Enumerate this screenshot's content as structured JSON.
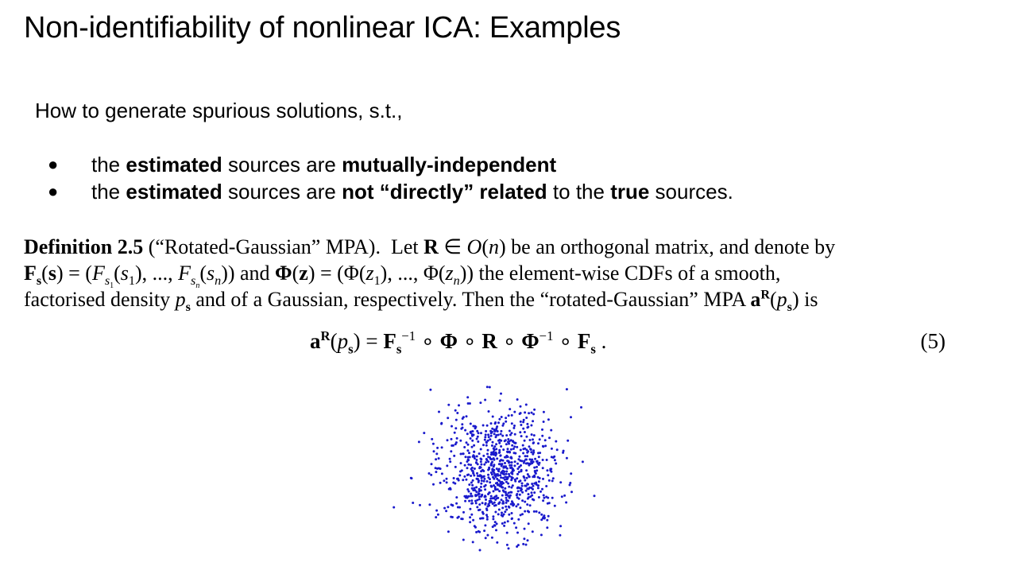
{
  "slide": {
    "title": "Non-identifiability of nonlinear ICA: Examples",
    "intro": "How to generate spurious solutions, s.t.,",
    "bullets": [
      {
        "t1": "the ",
        "b1": "estimated",
        "t2": " sources are ",
        "b2": "mutually-independent",
        "t3": ""
      },
      {
        "t1": "the ",
        "b1": "estimated",
        "t2": " sources are ",
        "b2": "not “directly” related",
        "t3": " to the ",
        "b3": "true",
        "t4": " sources."
      }
    ]
  },
  "definition": {
    "label": "Definition 2.5",
    "name": "(“Rotated-Gaussian” MPA).",
    "line1_a": "Let ",
    "line1_b": " be an orthogonal matrix, and denote by",
    "line2_b": " the element-wise CDFs of a smooth,",
    "line3_a": "factorised density ",
    "line3_b": " and of a Gaussian, respectively. Then the “rotated-Gaussian” MPA ",
    "line3_c": " is",
    "equation_number": "(5)"
  },
  "figure": {
    "type": "scatter",
    "point_color": "#1a1acc",
    "point_count": 900,
    "distribution": "isotropic Gaussian cloud"
  }
}
